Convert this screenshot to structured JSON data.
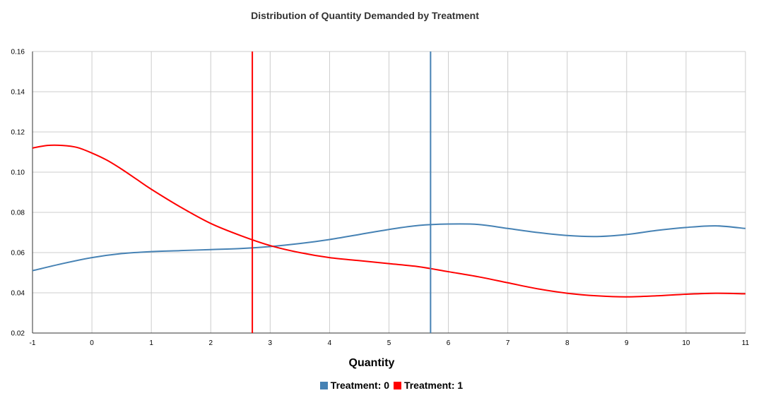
{
  "chart_data": {
    "type": "line",
    "title": "Distribution of Quantity Demanded by Treatment",
    "xlabel": "Quantity",
    "ylabel": "",
    "xlim": [
      -1,
      11
    ],
    "ylim": [
      0.02,
      0.16
    ],
    "x_ticks": [
      "-1",
      "0",
      "1",
      "2",
      "3",
      "4",
      "5",
      "6",
      "7",
      "8",
      "9",
      "10",
      "11"
    ],
    "y_ticks": [
      "0.02",
      "0.04",
      "0.06",
      "0.08",
      "0.10",
      "0.12",
      "0.14",
      "0.16"
    ],
    "grid": true,
    "legend_position": "bottom",
    "series": [
      {
        "name": "Treatment: 0",
        "color": "#4682b4",
        "x": [
          -1,
          -0.5,
          0,
          0.5,
          1,
          1.5,
          2,
          2.5,
          3,
          3.5,
          4,
          4.5,
          5,
          5.5,
          6,
          6.5,
          7,
          7.5,
          8,
          8.5,
          9,
          9.5,
          10,
          10.5,
          11
        ],
        "y": [
          0.051,
          0.0545,
          0.0575,
          0.0595,
          0.0605,
          0.061,
          0.0615,
          0.062,
          0.063,
          0.0645,
          0.0665,
          0.069,
          0.0715,
          0.0735,
          0.0742,
          0.074,
          0.072,
          0.07,
          0.0685,
          0.068,
          0.069,
          0.071,
          0.0725,
          0.0733,
          0.072
        ],
        "mean_line": 5.7
      },
      {
        "name": "Treatment: 1",
        "color": "#ff0000",
        "x": [
          -1,
          -0.75,
          -0.5,
          -0.25,
          0,
          0.25,
          0.5,
          0.75,
          1,
          1.5,
          2,
          2.5,
          3,
          3.5,
          4,
          4.5,
          5,
          5.5,
          6,
          6.5,
          7,
          7.5,
          8,
          8.5,
          9,
          9.5,
          10,
          10.5,
          11
        ],
        "y": [
          0.112,
          0.1133,
          0.1133,
          0.1123,
          0.1095,
          0.106,
          0.1015,
          0.0965,
          0.0915,
          0.0825,
          0.0745,
          0.0685,
          0.0635,
          0.06,
          0.0575,
          0.056,
          0.0545,
          0.053,
          0.0505,
          0.048,
          0.045,
          0.042,
          0.0398,
          0.0385,
          0.038,
          0.0385,
          0.0393,
          0.0398,
          0.0395
        ],
        "mean_line": 2.7
      }
    ]
  }
}
